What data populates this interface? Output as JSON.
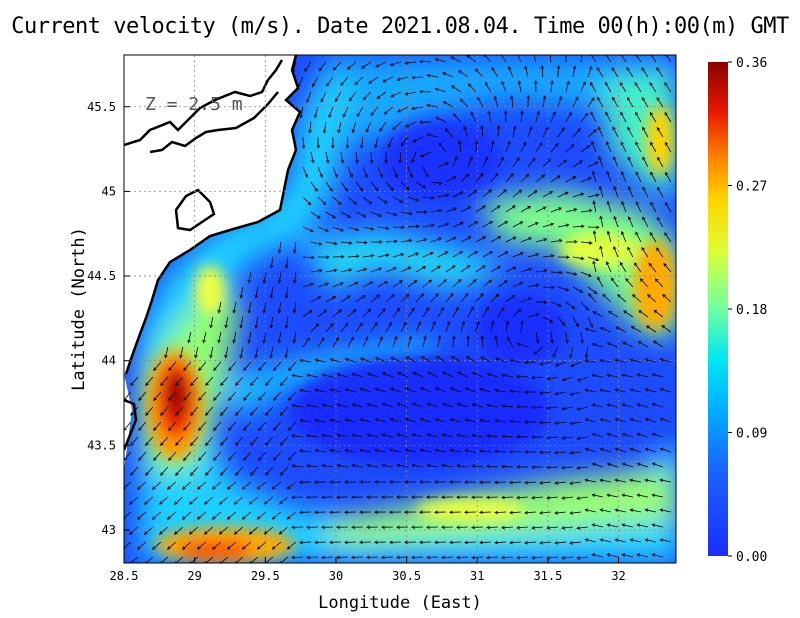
{
  "title": "Current velocity (m/s). Date 2021.08.04. Time 00(h):00(m) GMT",
  "depth_label": "Z = 2.5 m",
  "xlabel": "Longitude (East)",
  "ylabel": "Latitude (North)",
  "lon_ticks": [
    "28.5",
    "29",
    "29.5",
    "30",
    "30.5",
    "31",
    "31.5",
    "32"
  ],
  "lat_ticks": [
    "43",
    "43.5",
    "44",
    "44.5",
    "45",
    "45.5"
  ],
  "colorbar_ticks": [
    "0.00",
    "0.09",
    "0.18",
    "0.27",
    "0.36"
  ],
  "colors": {
    "low": "#1a3cff",
    "mid_low": "#00e0ff",
    "mid": "#aaff55",
    "mid_high": "#ffcc00",
    "high": "#8b0000",
    "land": "#ffffff"
  },
  "chart_data": {
    "type": "heatmap",
    "title": "Current velocity (m/s). Date 2021.08.04. Time 00(h):00(m) GMT",
    "xlabel": "Longitude (East)",
    "ylabel": "Latitude (North)",
    "xlim": [
      28.5,
      32.4
    ],
    "ylim": [
      42.8,
      45.8
    ],
    "colorbar_range": [
      0.0,
      0.36
    ],
    "grid": true,
    "hotspots": [
      {
        "lon": 28.85,
        "lat": 43.8,
        "value": 0.36
      },
      {
        "lon": 29.15,
        "lat": 42.9,
        "value": 0.27
      },
      {
        "lon": 32.2,
        "lat": 44.5,
        "value": 0.27
      },
      {
        "lon": 31.8,
        "lat": 44.9,
        "value": 0.2
      },
      {
        "lon": 30.8,
        "lat": 43.05,
        "value": 0.18
      },
      {
        "lon": 32.3,
        "lat": 45.5,
        "value": 0.24
      }
    ]
  }
}
